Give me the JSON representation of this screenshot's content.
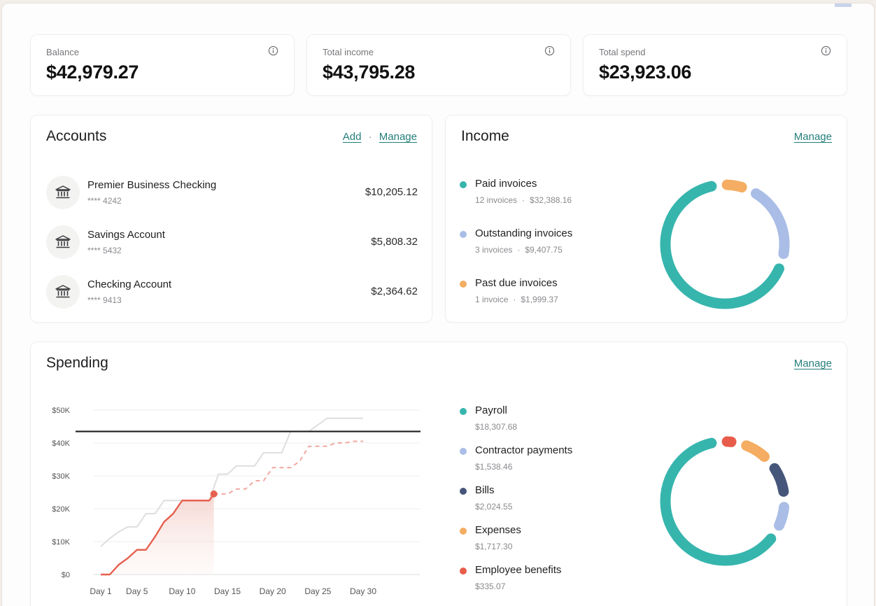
{
  "stats": [
    {
      "label": "Balance",
      "value": "$42,979.27"
    },
    {
      "label": "Total income",
      "value": "$43,795.28"
    },
    {
      "label": "Total spend",
      "value": "$23,923.06"
    }
  ],
  "accounts": {
    "title": "Accounts",
    "add_label": "Add",
    "separator": "·",
    "manage_label": "Manage",
    "items": [
      {
        "name": "Premier Business Checking",
        "number": "**** 4242",
        "amount": "$10,205.12"
      },
      {
        "name": "Savings Account",
        "number": "**** 5432",
        "amount": "$5,808.32"
      },
      {
        "name": "Checking Account",
        "number": "**** 9413",
        "amount": "$2,364.62"
      }
    ]
  },
  "income": {
    "title": "Income",
    "manage_label": "Manage",
    "items": [
      {
        "name": "Paid invoices",
        "count": "12 invoices",
        "amount": "$32,388.16",
        "color": "#36b5ad"
      },
      {
        "name": "Outstanding invoices",
        "count": "3 invoices",
        "amount": "$9,407.75",
        "color": "#a9bde6"
      },
      {
        "name": "Past due invoices",
        "count": "1 invoice",
        "amount": "$1,999.37",
        "color": "#f4ad62"
      }
    ],
    "donut_values": [
      32388.16,
      9407.75,
      1999.37
    ]
  },
  "spending": {
    "title": "Spending",
    "manage_label": "Manage",
    "items": [
      {
        "name": "Payroll",
        "amount": "$18,307.68",
        "color": "#36b5ad"
      },
      {
        "name": "Contractor payments",
        "amount": "$1,538.46",
        "color": "#a9bde6"
      },
      {
        "name": "Bills",
        "amount": "$2,024.55",
        "color": "#46567a"
      },
      {
        "name": "Expenses",
        "amount": "$1,717.30",
        "color": "#f4ad62"
      },
      {
        "name": "Employee benefits",
        "amount": "$335.07",
        "color": "#e85c4a"
      }
    ],
    "donut_values": [
      18307.68,
      1538.46,
      2024.55,
      1717.3,
      335.07
    ]
  },
  "colors": {
    "accent": "#237e7a",
    "teal": "#36b5ad",
    "current_line": "#e6604f",
    "projected_line": "#f0a8a0",
    "previous_line": "#dedede",
    "budget_line": "#1d1d1f"
  },
  "chart_data": {
    "type": "line",
    "x_ticks": [
      "Day 1",
      "Day 5",
      "Day 10",
      "Day 15",
      "Day 20",
      "Day 25",
      "Day 30"
    ],
    "y_ticks": [
      "$0",
      "$10K",
      "$20K",
      "$30K",
      "$40K",
      "$50K"
    ],
    "ylim": [
      0,
      50000
    ],
    "xlim": [
      1,
      30
    ],
    "budget": 43500,
    "series": [
      {
        "style": "solid-red",
        "x": [
          1,
          2,
          3,
          4,
          5,
          6,
          7,
          8,
          9,
          10,
          11,
          12,
          13,
          13.5
        ],
        "y": [
          0,
          0,
          3000,
          5000,
          7500,
          7500,
          11500,
          16000,
          18500,
          22500,
          22500,
          22500,
          22500,
          24500
        ]
      },
      {
        "style": "dashed-pink",
        "x": [
          13.5,
          14,
          15,
          16,
          17,
          18,
          19,
          20,
          21,
          22,
          23,
          24,
          25,
          26,
          27,
          28,
          29,
          30
        ],
        "y": [
          24500,
          24500,
          24500,
          26000,
          26000,
          28500,
          28500,
          32500,
          32500,
          32500,
          34500,
          39000,
          39000,
          39000,
          40000,
          40000,
          40500,
          40500
        ]
      },
      {
        "style": "grey",
        "x": [
          1,
          2,
          3,
          4,
          5,
          6,
          7,
          8,
          9,
          10,
          11,
          12,
          13,
          14,
          15,
          16,
          17,
          18,
          19,
          20,
          21,
          22,
          23,
          24,
          25,
          26,
          27,
          28,
          29,
          30
        ],
        "y": [
          8500,
          11000,
          13000,
          14500,
          14500,
          18500,
          18500,
          22500,
          22500,
          22500,
          22500,
          22500,
          22500,
          30500,
          30500,
          33000,
          33000,
          33000,
          37000,
          37000,
          37000,
          43500,
          43500,
          43500,
          45500,
          47500,
          47500,
          47500,
          47500,
          47500
        ]
      }
    ]
  }
}
